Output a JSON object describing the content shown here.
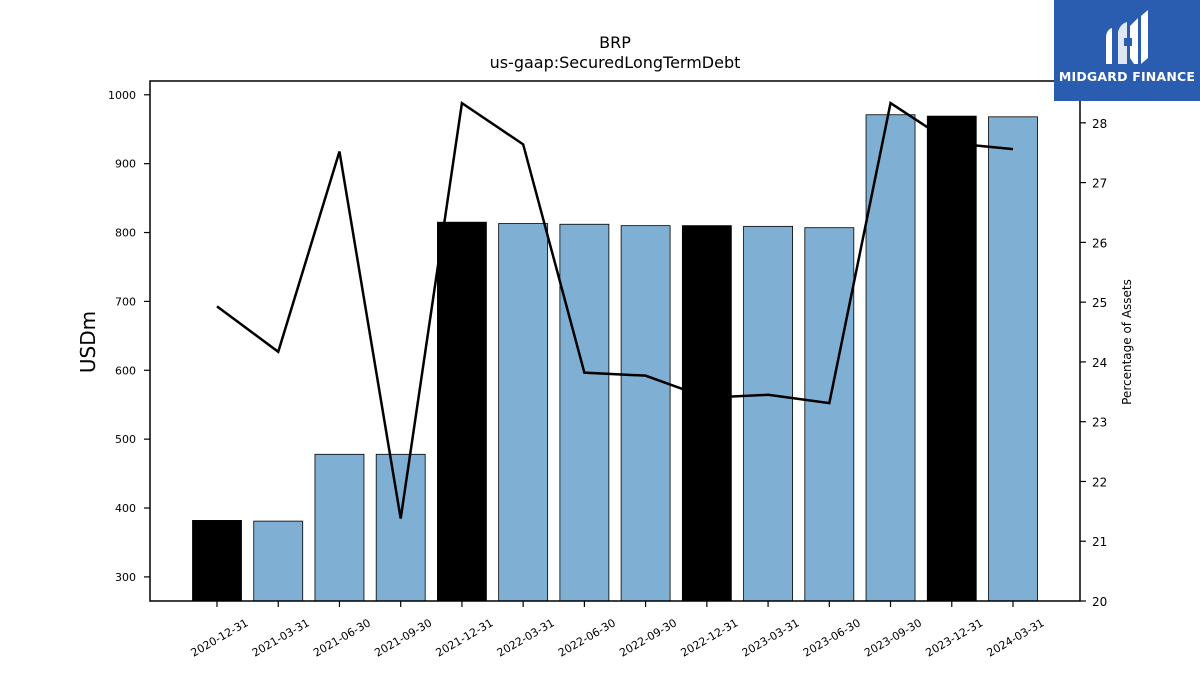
{
  "brand": {
    "name": "MIDGARD FINANCE",
    "logo_icon": "midgard-m-logo-icon",
    "background_color": "#2a5db0"
  },
  "chart_data": {
    "type": "bar",
    "title": "BRP",
    "subtitle": "us-gaap:SecuredLongTermDebt",
    "ylabel": "USDm",
    "y2label": "Percentage of Assets",
    "categories": [
      "2020-12-31",
      "2021-03-31",
      "2021-06-30",
      "2021-09-30",
      "2021-12-31",
      "2022-03-31",
      "2022-06-30",
      "2022-09-30",
      "2022-12-31",
      "2023-03-31",
      "2023-06-30",
      "2023-09-30",
      "2023-12-31",
      "2024-03-31"
    ],
    "series": [
      {
        "kind": "bar",
        "axis": "left",
        "values": [
          382,
          381,
          478,
          478,
          815,
          813,
          812,
          810,
          810,
          809,
          807,
          971,
          969,
          968
        ],
        "colors": [
          "#000000",
          "#7fafd3",
          "#7fafd3",
          "#7fafd3",
          "#000000",
          "#7fafd3",
          "#7fafd3",
          "#7fafd3",
          "#000000",
          "#7fafd3",
          "#7fafd3",
          "#7fafd3",
          "#000000",
          "#7fafd3"
        ]
      },
      {
        "kind": "line",
        "axis": "right",
        "color": "#000000",
        "values": [
          24.93,
          24.17,
          27.52,
          21.38,
          28.33,
          27.64,
          23.82,
          23.77,
          23.4,
          23.45,
          23.31,
          28.33,
          27.66,
          27.56
        ]
      }
    ],
    "ylim": [
      265,
      1020
    ],
    "y2lim": [
      20,
      28.7
    ],
    "yticks": [
      300,
      400,
      500,
      600,
      700,
      800,
      900,
      1000
    ],
    "y2ticks": [
      20,
      21,
      22,
      23,
      24,
      25,
      26,
      27,
      28
    ],
    "grid": false,
    "legend": "none"
  }
}
